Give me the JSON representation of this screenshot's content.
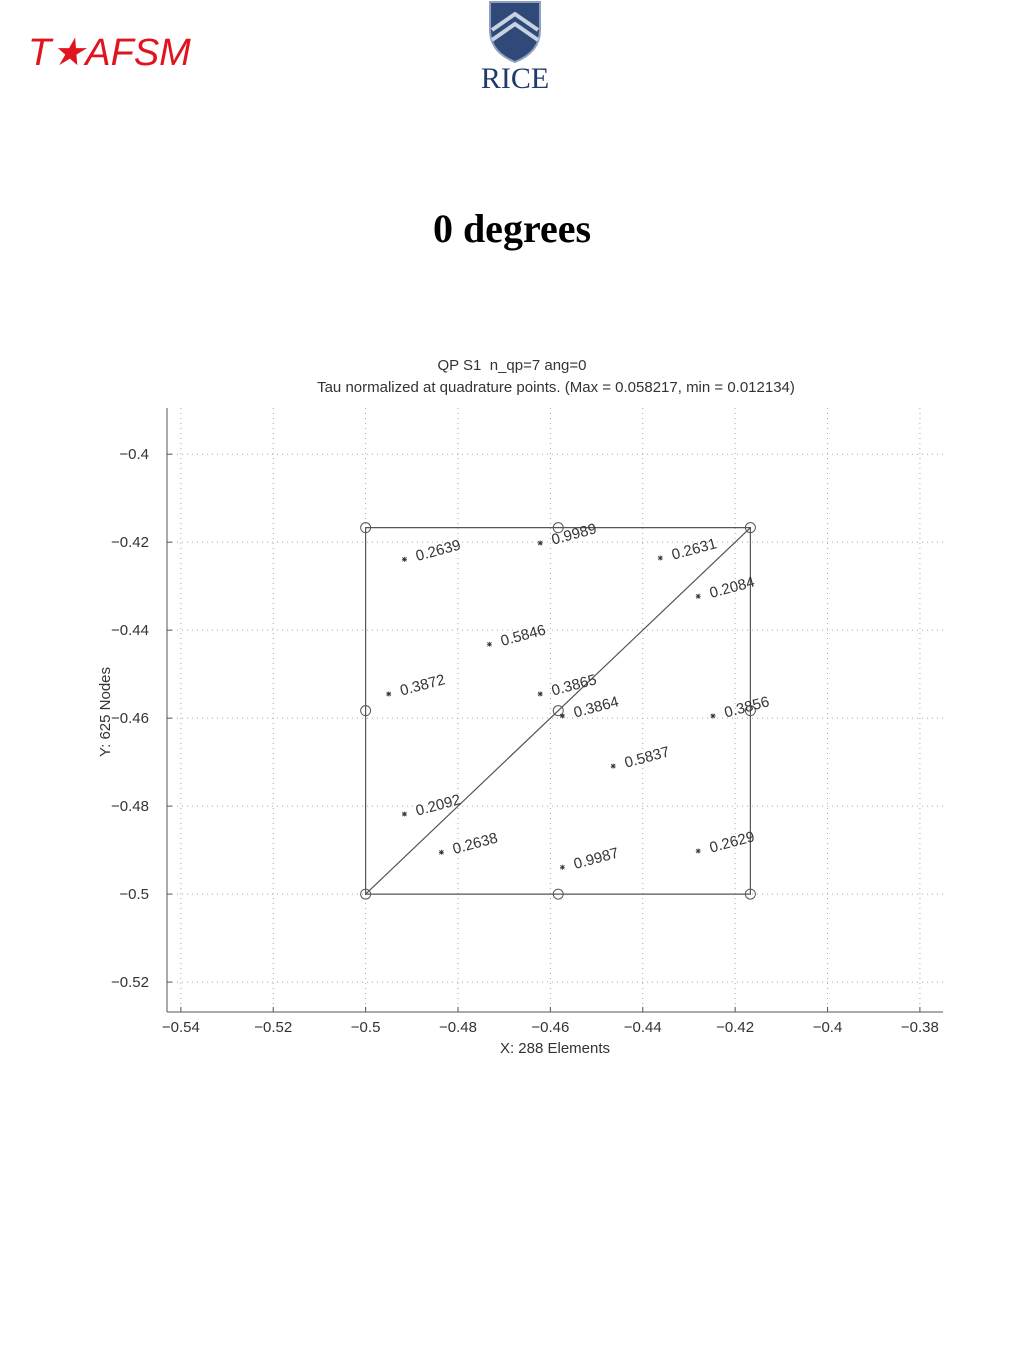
{
  "header": {
    "brand": "T★AFSM",
    "logo_text": "RICE"
  },
  "slide_title": "0 degrees",
  "chart_data": {
    "type": "scatter",
    "title": "QP S1  n_qp=7 ang=0",
    "subtitle": "Tau normalized at quadrature points. (Max = 0.058217, min = 0.012134)",
    "xlabel": "X: 288 Elements",
    "ylabel": "Y: 625 Nodes",
    "xlim": [
      -0.543,
      -0.375
    ],
    "ylim": [
      -0.5268,
      -0.3895
    ],
    "xticks": [
      {
        "value": -0.54,
        "label": "−0.54"
      },
      {
        "value": -0.52,
        "label": "−0.52"
      },
      {
        "value": -0.5,
        "label": "−0.5"
      },
      {
        "value": -0.48,
        "label": "−0.48"
      },
      {
        "value": -0.46,
        "label": "−0.46"
      },
      {
        "value": -0.44,
        "label": "−0.44"
      },
      {
        "value": -0.42,
        "label": "−0.42"
      },
      {
        "value": -0.4,
        "label": "−0.4"
      },
      {
        "value": -0.38,
        "label": "−0.38"
      }
    ],
    "yticks": [
      {
        "value": -0.52,
        "label": "−0.52"
      },
      {
        "value": -0.5,
        "label": "−0.5"
      },
      {
        "value": -0.48,
        "label": "−0.48"
      },
      {
        "value": -0.46,
        "label": "−0.46"
      },
      {
        "value": -0.44,
        "label": "−0.44"
      },
      {
        "value": -0.42,
        "label": "−0.42"
      },
      {
        "value": -0.4,
        "label": "−0.4"
      }
    ],
    "grid": true,
    "color": "#555555",
    "mesh": {
      "x": [
        -0.5,
        -0.4167,
        -0.4167,
        -0.5,
        -0.5,
        -0.4167
      ],
      "y": [
        -0.5,
        -0.5,
        -0.4167,
        -0.4167,
        -0.5,
        -0.4167
      ]
    },
    "nodes": {
      "x": [
        -0.5,
        -0.4583,
        -0.4167,
        -0.5,
        -0.4583,
        -0.4167,
        -0.5,
        -0.4583,
        -0.4167
      ],
      "y": [
        -0.4167,
        -0.4167,
        -0.4167,
        -0.4583,
        -0.4583,
        -0.4583,
        -0.5,
        -0.5,
        -0.5
      ]
    },
    "points": {
      "x": [
        -0.4916,
        -0.4622,
        -0.4362,
        -0.428,
        -0.4732,
        -0.495,
        -0.4622,
        -0.4574,
        -0.4248,
        -0.4464,
        -0.4916,
        -0.4836,
        -0.4574,
        -0.428
      ],
      "y": [
        -0.4239,
        -0.4202,
        -0.4236,
        -0.4323,
        -0.4432,
        -0.4545,
        -0.4545,
        -0.4595,
        -0.4595,
        -0.4709,
        -0.4818,
        -0.4905,
        -0.4939,
        -0.4902
      ],
      "values": [
        0.2639,
        0.9989,
        0.2631,
        0.2084,
        0.5846,
        0.3872,
        0.3865,
        0.3864,
        0.3856,
        0.5837,
        0.2092,
        0.2638,
        0.9987,
        0.2629
      ]
    }
  }
}
